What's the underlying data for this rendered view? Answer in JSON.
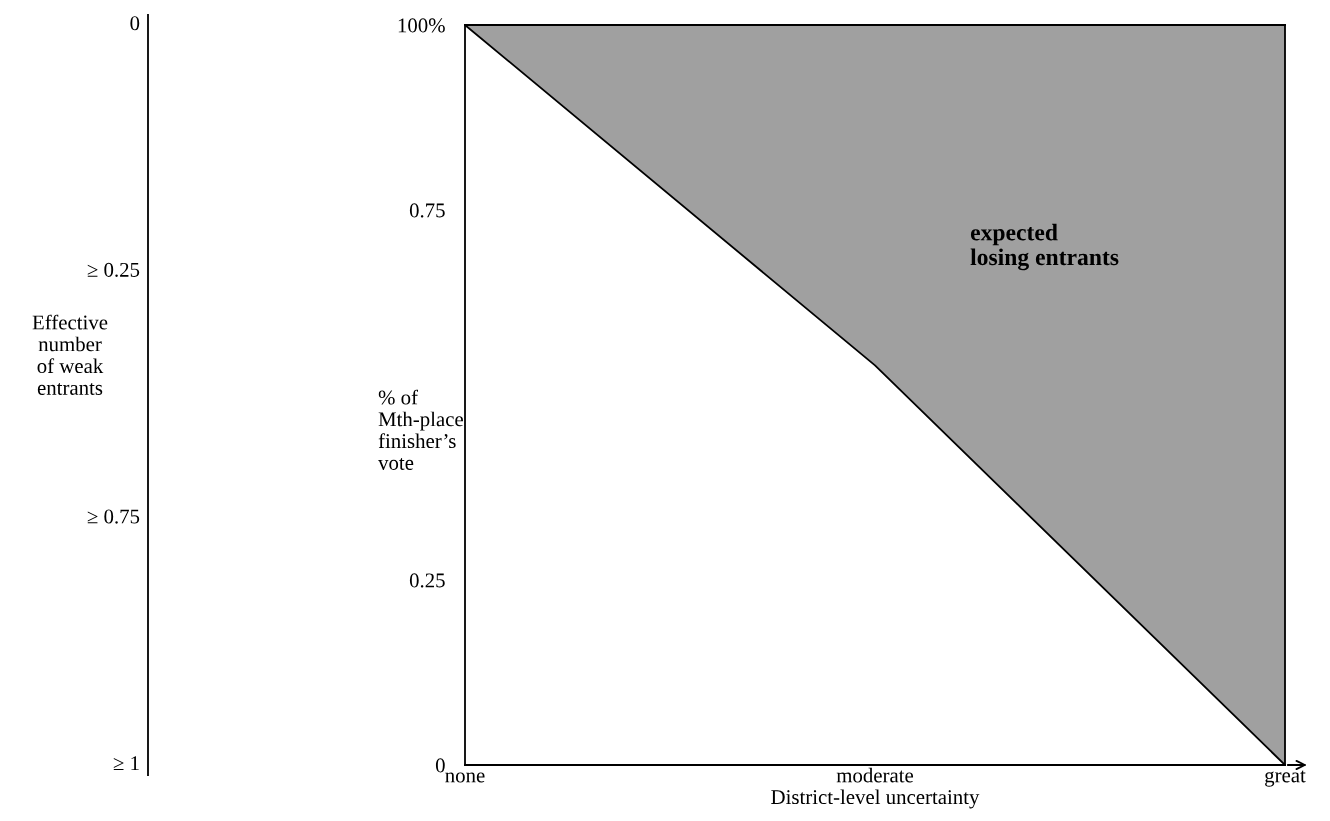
{
  "chart_data": [
    {
      "type": "other",
      "ylabel": "Effective\nnumber\nof weak\nentrants",
      "annotations": [
        "0",
        "≥ 0.25",
        "≥ 0.75",
        "≥ 1"
      ]
    },
    {
      "type": "area",
      "xlabel": "District-level uncertainty",
      "ylabel": "% of\nMth-place\nfinisher’s\nvote",
      "categories": [
        "none",
        "moderate",
        "great"
      ],
      "ylim": [
        0,
        1
      ],
      "yticks": [
        {
          "value": 0,
          "label": "0"
        },
        {
          "value": 0.25,
          "label": "0.25"
        },
        {
          "value": 0.75,
          "label": "0.75"
        },
        {
          "value": 1,
          "label": "100%"
        }
      ],
      "series": [
        {
          "type": "line",
          "color": "#000000",
          "values": [
            1,
            0.54,
            0
          ],
          "lower": [
            1,
            0.54,
            0
          ],
          "upper": [
            1,
            1,
            1
          ]
        }
      ],
      "annotations": [
        "expected\nlosing entrants"
      ],
      "grid": false,
      "legend": false
    }
  ]
}
